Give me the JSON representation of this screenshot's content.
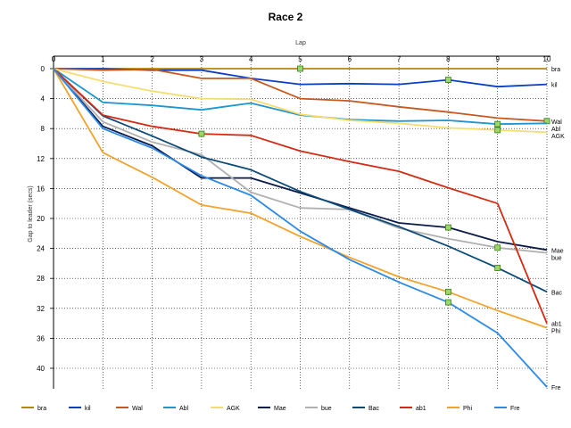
{
  "chart_data": {
    "type": "line",
    "title": "Race 2",
    "xlabel": "Lap",
    "ylabel": "Gap to leader (secs)",
    "x": [
      0,
      1,
      2,
      3,
      4,
      5,
      6,
      7,
      8,
      9,
      10
    ],
    "xlim": [
      0,
      10
    ],
    "ylim": [
      0,
      42
    ],
    "y_inverted": true,
    "x_axis_position": "top",
    "yticks": [
      0,
      4,
      8,
      12,
      16,
      20,
      24,
      28,
      32,
      36,
      40
    ],
    "grid": true,
    "legend_position": "bottom",
    "series": [
      {
        "name": "bra",
        "color": "#b8860b",
        "values": [
          0,
          0,
          0,
          0,
          0,
          0,
          0,
          0,
          0,
          0,
          0
        ],
        "markers": [
          5
        ],
        "end_label": "bra"
      },
      {
        "name": "kil",
        "color": "#0a3fc4",
        "values": [
          0,
          0,
          0.2,
          0.2,
          1.3,
          2.1,
          2.0,
          2.1,
          1.5,
          2.4,
          2.1
        ],
        "markers": [
          8
        ],
        "end_label": "kil"
      },
      {
        "name": "Wal",
        "color": "#c8581e",
        "values": [
          0,
          0.2,
          0.1,
          1.3,
          1.3,
          4.0,
          4.3,
          5.1,
          5.8,
          6.6,
          7.0
        ],
        "markers": [
          10
        ],
        "end_label": "Wal"
      },
      {
        "name": "Abl",
        "color": "#1e96d0",
        "values": [
          0,
          4.5,
          4.9,
          5.5,
          4.6,
          6.2,
          6.8,
          7.0,
          6.9,
          7.4,
          7.3
        ],
        "markers": [
          9
        ],
        "end_label": "Abl"
      },
      {
        "name": "AGK",
        "color": "#f5dd70",
        "values": [
          0,
          1.7,
          3.0,
          4.0,
          4.1,
          6.1,
          6.9,
          7.3,
          7.9,
          8.2,
          8.5
        ],
        "markers": [
          9
        ],
        "end_label": "AGK"
      },
      {
        "name": "Mae",
        "color": "#0a1a4a",
        "values": [
          0,
          7.7,
          10.3,
          14.6,
          14.6,
          16.6,
          18.6,
          20.6,
          21.2,
          23.1,
          24.2
        ],
        "markers": [
          8
        ],
        "end_label": "Mae"
      },
      {
        "name": "bue",
        "color": "#b0b0b0",
        "values": [
          0,
          7.1,
          9.8,
          11.5,
          16.5,
          18.6,
          18.8,
          21.3,
          22.7,
          23.9,
          24.6
        ],
        "markers": [
          9
        ],
        "end_label": "bue"
      },
      {
        "name": "Bac",
        "color": "#0b4a78",
        "values": [
          0,
          6.3,
          9.0,
          11.8,
          13.5,
          16.4,
          18.8,
          21.1,
          23.7,
          26.6,
          29.8
        ],
        "markers": [
          9
        ],
        "end_label": "Bac"
      },
      {
        "name": "ab1",
        "color": "#d42a12",
        "values": [
          0,
          6.2,
          7.7,
          8.7,
          8.9,
          11.0,
          12.4,
          13.7,
          15.9,
          18.0,
          34.0
        ],
        "markers": [
          3
        ],
        "end_label": "ab1"
      },
      {
        "name": "Phi",
        "color": "#f4a22a",
        "values": [
          0,
          11.2,
          14.5,
          18.2,
          19.3,
          22.4,
          25.2,
          27.8,
          29.8,
          32.3,
          34.6
        ],
        "markers": [
          8
        ],
        "end_label": "Phi"
      },
      {
        "name": "Fre",
        "color": "#2b8ae8",
        "values": [
          0,
          8.0,
          10.6,
          14.3,
          16.9,
          21.7,
          25.5,
          28.5,
          31.2,
          35.3,
          42.5
        ],
        "markers": [
          8
        ],
        "end_label": "Fre"
      }
    ]
  }
}
